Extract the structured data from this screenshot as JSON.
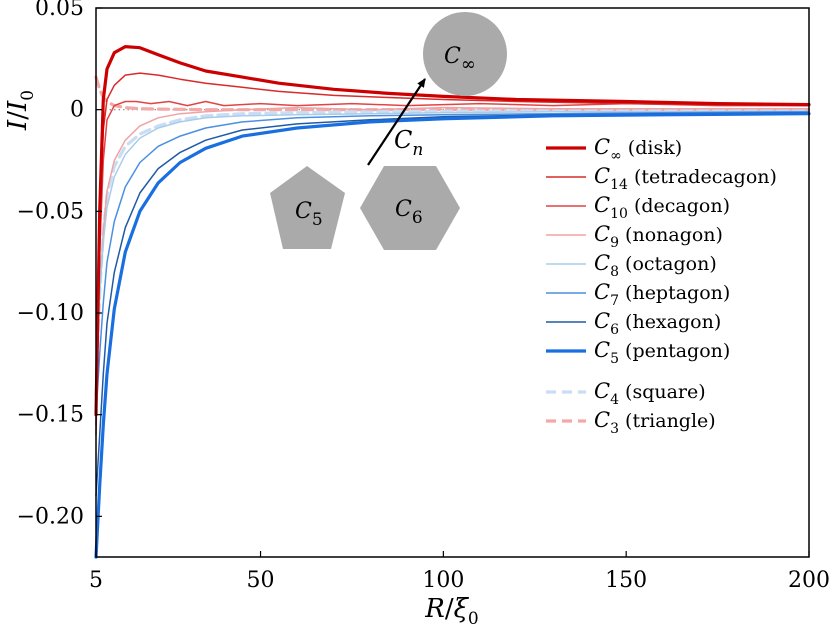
{
  "chart_data": {
    "type": "line",
    "title": "",
    "xlabel": "R/ξ0",
    "ylabel": "I/I0",
    "xlim": [
      5,
      200
    ],
    "ylim": [
      -0.22,
      0.05
    ],
    "xticks": [
      5,
      50,
      100,
      150,
      200
    ],
    "xtick_labels": [
      "5",
      "50",
      "100",
      "150",
      "200"
    ],
    "yticks": [
      0.05,
      0,
      -0.05,
      -0.1,
      -0.15,
      -0.2
    ],
    "ytick_labels": [
      "0.05",
      "0",
      "−0.05",
      "−0.10",
      "−0.15",
      "−0.20"
    ],
    "reference_line_y": 0,
    "legend_position": "center-right",
    "series": [
      {
        "name": "C∞ (disk)",
        "sub": "∞",
        "desc": "(disk)",
        "color": "#cc0000",
        "style": "solid",
        "weight": "thick",
        "x": [
          5,
          6,
          7,
          8,
          10,
          13,
          17,
          22,
          28,
          35,
          45,
          55,
          70,
          85,
          100,
          120,
          150,
          175,
          200
        ],
        "y": [
          -0.15,
          -0.05,
          0.005,
          0.02,
          0.028,
          0.031,
          0.0305,
          0.027,
          0.023,
          0.019,
          0.016,
          0.013,
          0.01,
          0.008,
          0.0065,
          0.005,
          0.004,
          0.003,
          0.0025
        ]
      },
      {
        "name": "C14 (tetradecagon)",
        "sub": "14",
        "desc": "(tetradecagon)",
        "color": "#d92b2b",
        "style": "solid",
        "weight": "thin",
        "x": [
          5,
          6,
          7,
          8,
          10,
          13,
          17,
          22,
          28,
          35,
          45,
          55,
          70,
          85,
          100,
          120,
          150,
          175,
          200
        ],
        "y": [
          -0.155,
          -0.06,
          -0.01,
          0.005,
          0.012,
          0.017,
          0.018,
          0.017,
          0.015,
          0.013,
          0.011,
          0.009,
          0.007,
          0.006,
          0.005,
          0.004,
          0.003,
          0.0025,
          0.002
        ]
      },
      {
        "name": "C10 (decagon)",
        "sub": "10",
        "desc": "(decagon)",
        "color": "#e04545",
        "style": "solid",
        "weight": "thin",
        "x": [
          5,
          6,
          7,
          8,
          10,
          13,
          16,
          20,
          25,
          30,
          35,
          40,
          50,
          60,
          75,
          90,
          110,
          130,
          150,
          175,
          200
        ],
        "y": [
          -0.16,
          -0.07,
          -0.025,
          -0.005,
          0.002,
          0.004,
          0.004,
          0.003,
          0.004,
          0.002,
          0.004,
          0.002,
          0.003,
          0.002,
          0.003,
          0.002,
          0.003,
          0.002,
          0.003,
          0.002,
          0.002
        ]
      },
      {
        "name": "C9 (nonagon)",
        "sub": "9",
        "desc": "(nonagon)",
        "color": "#f0a3a3",
        "style": "solid",
        "weight": "thin",
        "x": [
          5,
          6,
          7,
          8,
          10,
          13,
          17,
          22,
          28,
          35,
          45,
          60,
          80,
          100,
          130,
          160,
          200
        ],
        "y": [
          -0.13,
          -0.09,
          -0.06,
          -0.04,
          -0.025,
          -0.015,
          -0.008,
          -0.004,
          -0.002,
          -0.001,
          0.0,
          0.001,
          0.0,
          0.001,
          0.0005,
          0.0005,
          0.0005
        ]
      },
      {
        "name": "C8 (octagon)",
        "sub": "8",
        "desc": "(octagon)",
        "color": "#a9cde8",
        "style": "solid",
        "weight": "thin",
        "x": [
          5,
          6,
          7,
          8,
          10,
          13,
          17,
          22,
          28,
          35,
          45,
          60,
          80,
          100,
          130,
          160,
          200
        ],
        "y": [
          -0.13,
          -0.09,
          -0.065,
          -0.048,
          -0.033,
          -0.022,
          -0.014,
          -0.009,
          -0.006,
          -0.004,
          -0.003,
          -0.0025,
          -0.002,
          -0.0015,
          -0.001,
          -0.001,
          -0.0008
        ]
      },
      {
        "name": "C7 (heptagon)",
        "sub": "7",
        "desc": "(heptagon)",
        "color": "#4a90e2",
        "style": "solid",
        "weight": "thin",
        "x": [
          5,
          6,
          7,
          8,
          10,
          13,
          17,
          22,
          28,
          35,
          45,
          60,
          80,
          100,
          130,
          160,
          200
        ],
        "y": [
          -0.15,
          -0.12,
          -0.095,
          -0.075,
          -0.055,
          -0.038,
          -0.026,
          -0.018,
          -0.013,
          -0.009,
          -0.006,
          -0.004,
          -0.003,
          -0.0025,
          -0.002,
          -0.0015,
          -0.001
        ]
      },
      {
        "name": "C6 (hexagon)",
        "sub": "6",
        "desc": "(hexagon)",
        "color": "#1f5aa6",
        "style": "solid",
        "weight": "thin",
        "x": [
          5,
          6,
          7,
          8,
          10,
          13,
          17,
          22,
          28,
          35,
          45,
          60,
          80,
          100,
          130,
          160,
          200
        ],
        "y": [
          -0.19,
          -0.16,
          -0.13,
          -0.105,
          -0.08,
          -0.058,
          -0.041,
          -0.029,
          -0.021,
          -0.015,
          -0.01,
          -0.007,
          -0.005,
          -0.0035,
          -0.0025,
          -0.002,
          -0.0015
        ]
      },
      {
        "name": "C5 (pentagon)",
        "sub": "5",
        "desc": "(pentagon)",
        "color": "#1a6fe0",
        "style": "solid",
        "weight": "thick",
        "x": [
          5,
          6,
          7,
          8,
          10,
          13,
          17,
          22,
          28,
          35,
          45,
          60,
          80,
          100,
          130,
          160,
          200
        ],
        "y": [
          -0.22,
          -0.185,
          -0.155,
          -0.13,
          -0.098,
          -0.07,
          -0.05,
          -0.036,
          -0.026,
          -0.019,
          -0.013,
          -0.009,
          -0.006,
          -0.0045,
          -0.003,
          -0.0025,
          -0.002
        ]
      },
      {
        "name": "C4 (square)",
        "sub": "4",
        "desc": "(square)",
        "color": "#c9ddf4",
        "style": "dashed",
        "weight": "thick",
        "x": [
          5,
          6,
          7,
          8,
          10,
          13,
          17,
          22,
          28,
          35,
          45,
          60,
          80,
          100,
          130,
          160,
          200
        ],
        "y": [
          -0.14,
          -0.09,
          -0.06,
          -0.042,
          -0.028,
          -0.018,
          -0.012,
          -0.008,
          -0.005,
          -0.003,
          -0.002,
          -0.0015,
          -0.001,
          -0.0008,
          -0.0005,
          -0.0005,
          -0.0003
        ]
      },
      {
        "name": "C3 (triangle)",
        "sub": "3",
        "desc": "(triangle)",
        "color": "#f4a9a9",
        "style": "dashed",
        "weight": "thick",
        "x": [
          5,
          6,
          7,
          8,
          10,
          13,
          17,
          22,
          28,
          35,
          45,
          60,
          80,
          100,
          130,
          160,
          200
        ],
        "y": [
          0.016,
          0.01,
          0.006,
          0.004,
          0.002,
          0.001,
          0.0005,
          0.0003,
          0.0002,
          0.0,
          0.0,
          0.0,
          0.0,
          0.0,
          0.0,
          0.0,
          0.0
        ]
      }
    ],
    "annotations": {
      "arrow_label_sub": "n",
      "shapes": [
        {
          "name": "disk",
          "sub": "∞"
        },
        {
          "name": "pentagon",
          "sub": "5"
        },
        {
          "name": "hexagon",
          "sub": "6"
        }
      ]
    }
  }
}
